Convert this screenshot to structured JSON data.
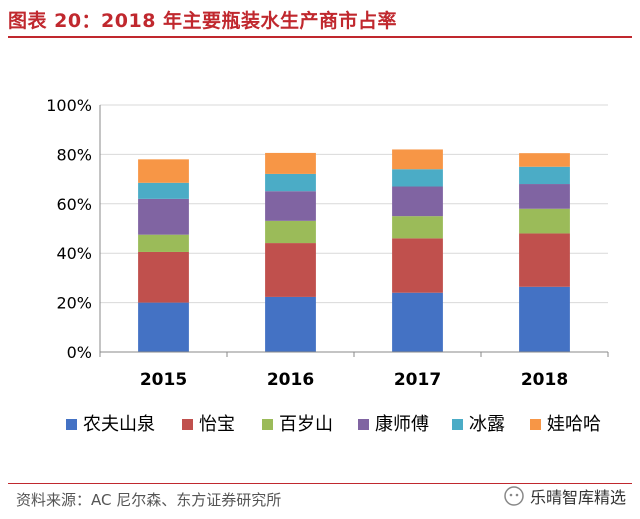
{
  "header": {
    "title": "图表 20：2018 年主要瓶装水生产商市占率"
  },
  "footer": {
    "source": "资料来源：AC 尼尔森、东方证券研究所",
    "watermark": "乐晴智库精选"
  },
  "chart_data": {
    "type": "bar",
    "stacked": true,
    "categories": [
      "2015",
      "2016",
      "2017",
      "2018"
    ],
    "ylim": [
      0,
      100
    ],
    "yticks": [
      "0%",
      "20%",
      "40%",
      "60%",
      "80%",
      "100%"
    ],
    "ytick_values": [
      0,
      20,
      40,
      60,
      80,
      100
    ],
    "grid": true,
    "legend_position": "bottom",
    "series": [
      {
        "name": "农夫山泉",
        "color": "#4472c4",
        "values": [
          20.0,
          22.3,
          24.0,
          26.4
        ]
      },
      {
        "name": "怡宝",
        "color": "#c0504d",
        "values": [
          20.5,
          21.8,
          22.0,
          21.6
        ]
      },
      {
        "name": "百岁山",
        "color": "#9bbb59",
        "values": [
          7.0,
          9.0,
          9.0,
          10.0
        ]
      },
      {
        "name": "康师傅",
        "color": "#8064a2",
        "values": [
          14.5,
          12.0,
          12.0,
          10.0
        ]
      },
      {
        "name": "冰露",
        "color": "#4bacc6",
        "values": [
          6.5,
          7.0,
          7.0,
          7.0
        ]
      },
      {
        "name": "娃哈哈",
        "color": "#f79646",
        "values": [
          9.5,
          8.5,
          8.0,
          5.5
        ]
      }
    ]
  }
}
